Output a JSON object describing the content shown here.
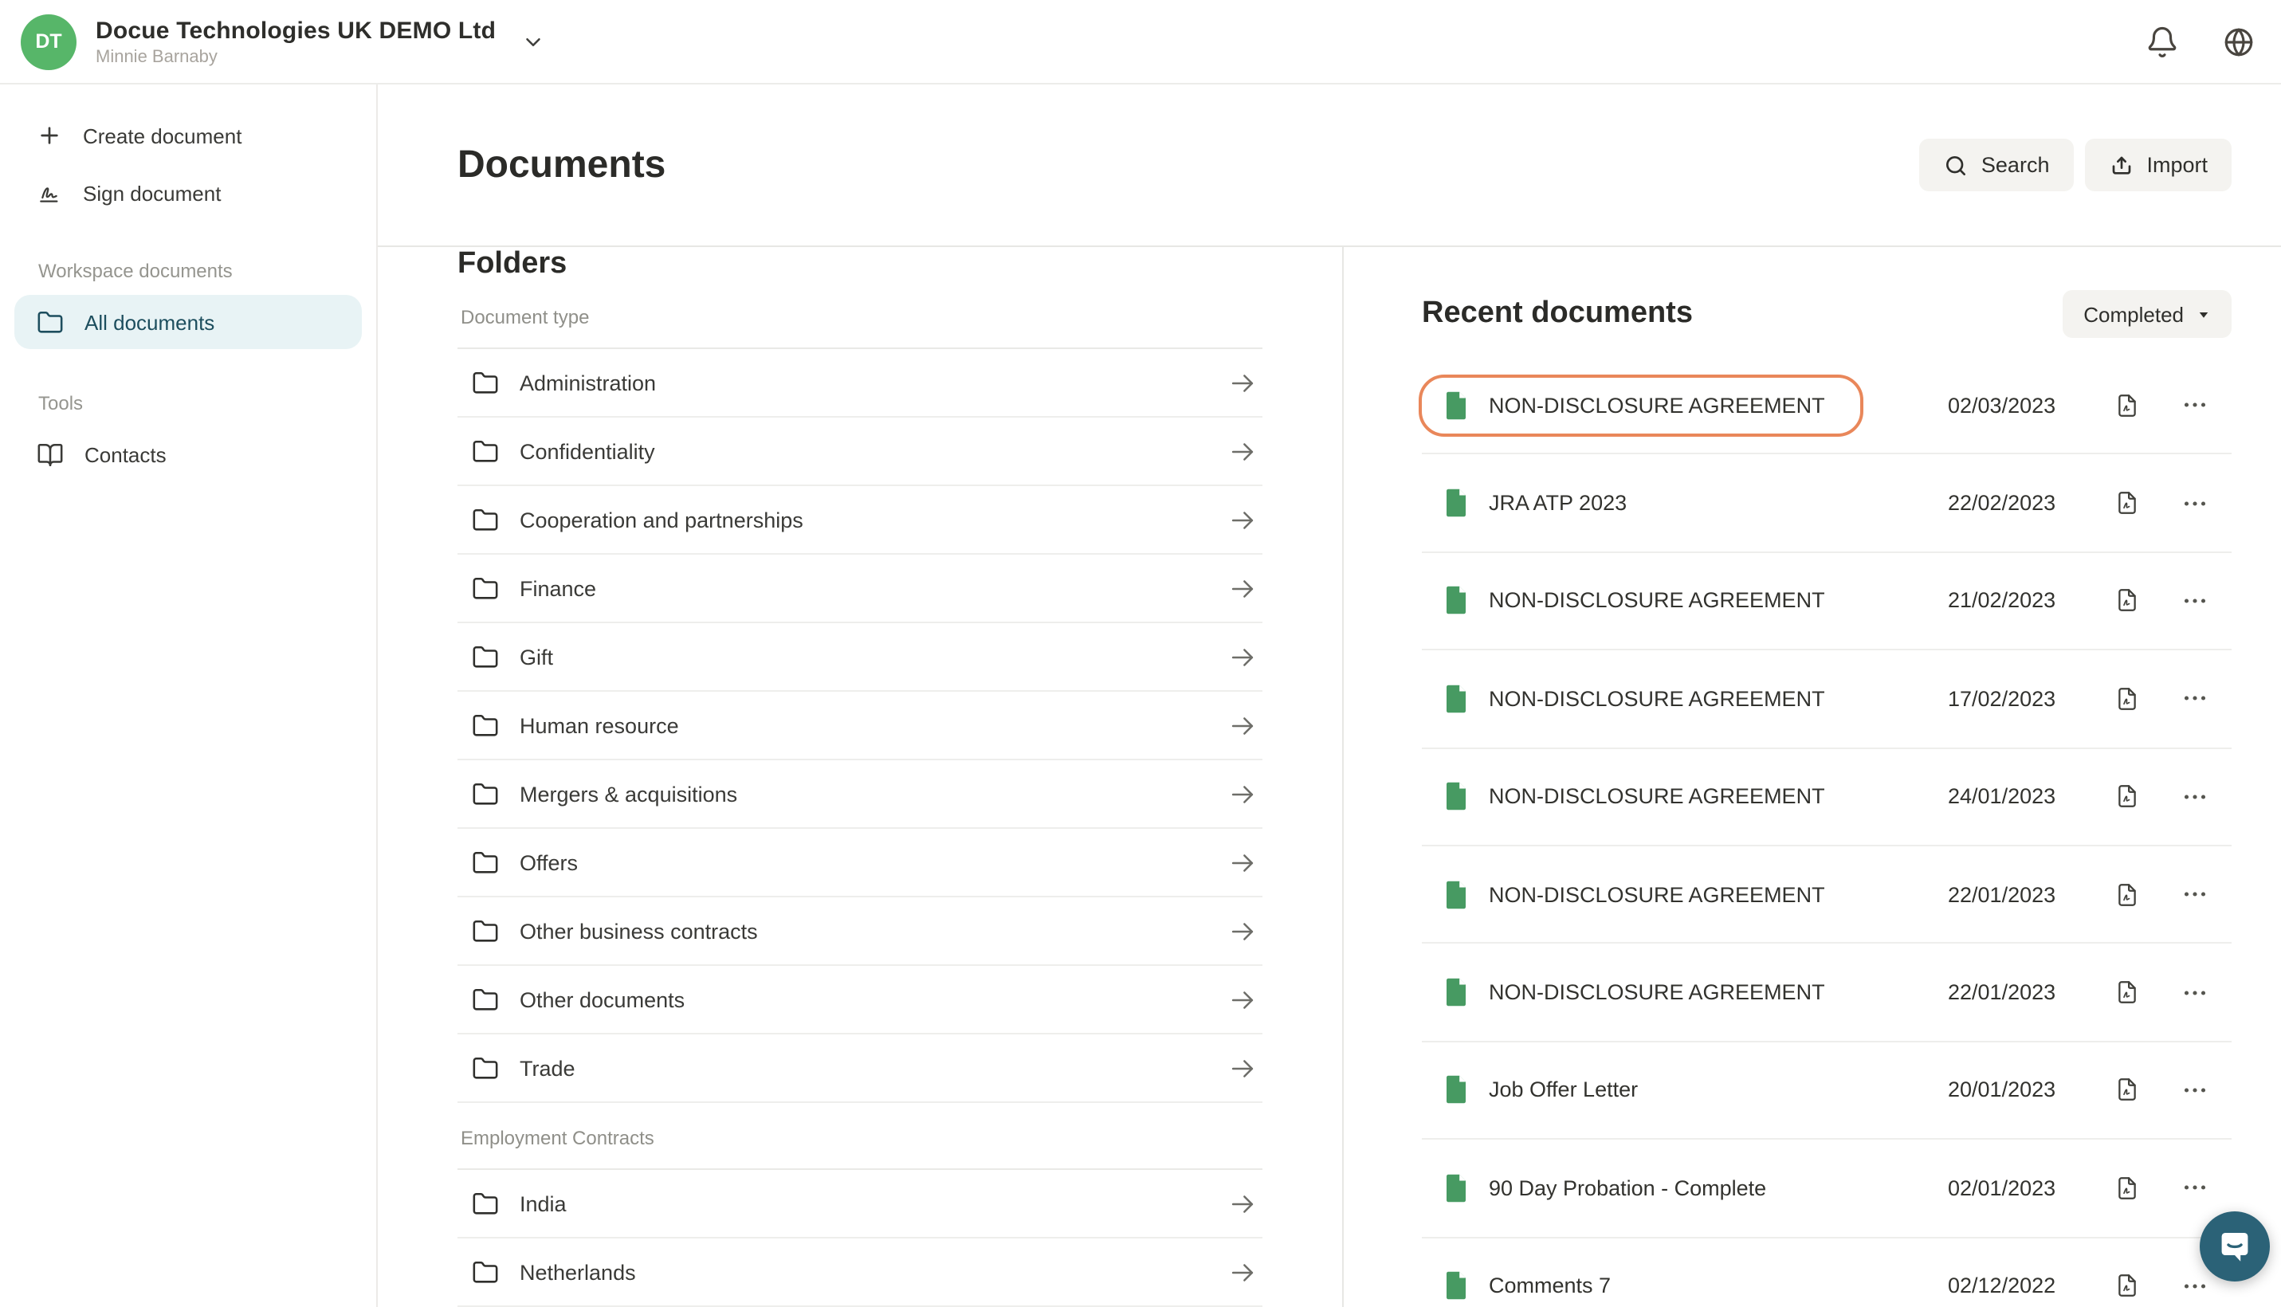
{
  "header": {
    "workspace_name": "Docue Technologies UK DEMO Ltd",
    "user_name": "Minnie Barnaby",
    "avatar_initials": "DT"
  },
  "sidebar": {
    "create_label": "Create document",
    "sign_label": "Sign document",
    "workspace_section": "Workspace documents",
    "all_documents_label": "All documents",
    "tools_section": "Tools",
    "contacts_label": "Contacts"
  },
  "main": {
    "title": "Documents",
    "search_label": "Search",
    "import_label": "Import"
  },
  "folders": {
    "title": "Folders",
    "groups": [
      {
        "label": "Document type",
        "items": [
          "Administration",
          "Confidentiality",
          "Cooperation and partnerships",
          "Finance",
          "Gift",
          "Human resource",
          "Mergers & acquisitions",
          "Offers",
          "Other business contracts",
          "Other documents",
          "Trade"
        ]
      },
      {
        "label": "Employment Contracts",
        "items": [
          "India",
          "Netherlands"
        ]
      }
    ]
  },
  "recent": {
    "title": "Recent documents",
    "filter_label": "Completed",
    "rows": [
      {
        "name": "NON-DISCLOSURE AGREEMENT",
        "date": "02/03/2023",
        "highlighted": true
      },
      {
        "name": "JRA ATP 2023",
        "date": "22/02/2023",
        "highlighted": false
      },
      {
        "name": "NON-DISCLOSURE AGREEMENT",
        "date": "21/02/2023",
        "highlighted": false
      },
      {
        "name": "NON-DISCLOSURE AGREEMENT",
        "date": "17/02/2023",
        "highlighted": false
      },
      {
        "name": "NON-DISCLOSURE AGREEMENT",
        "date": "24/01/2023",
        "highlighted": false
      },
      {
        "name": "NON-DISCLOSURE AGREEMENT",
        "date": "22/01/2023",
        "highlighted": false
      },
      {
        "name": "NON-DISCLOSURE AGREEMENT",
        "date": "22/01/2023",
        "highlighted": false
      },
      {
        "name": "Job Offer Letter",
        "date": "20/01/2023",
        "highlighted": false
      },
      {
        "name": "90 Day Probation - Complete",
        "date": "02/01/2023",
        "highlighted": false
      },
      {
        "name": "Comments 7",
        "date": "02/12/2022",
        "highlighted": false
      }
    ]
  },
  "colors": {
    "avatar_green": "#57b669",
    "doc_icon_green": "#479a62",
    "selected_bg": "#e8f3f5",
    "selected_text": "#1d4e5e",
    "highlight_orange": "#e9875a",
    "chat_teal": "#2b6277"
  }
}
